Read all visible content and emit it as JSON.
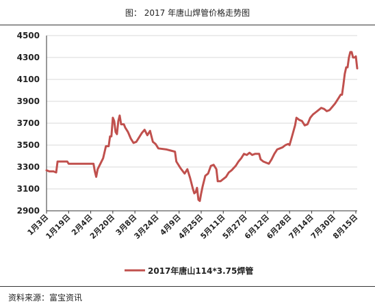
{
  "header": {
    "title": "图： 2017 年唐山焊管价格走势图"
  },
  "footer": {
    "source": "资料来源：富宝资讯"
  },
  "colors": {
    "series": "#c0504d",
    "grid": "#d9d9d9",
    "axis": "#333333"
  },
  "chart_data": {
    "type": "line",
    "title": "图： 2017 年唐山焊管价格走势图",
    "xlabel": "",
    "ylabel": "",
    "ylim": [
      2900,
      4500
    ],
    "yticks": [
      2900,
      3100,
      3300,
      3500,
      3700,
      3900,
      4100,
      4300,
      4500
    ],
    "xticks": [
      "1月3日",
      "1月19日",
      "2月4日",
      "2月20日",
      "3月8日",
      "3月24日",
      "4月9日",
      "4月25日",
      "5月11日",
      "5月27日",
      "6月12日",
      "6月28日",
      "7月14日",
      "7月30日",
      "8月15日"
    ],
    "grid": "horizontal",
    "legend_position": "bottom",
    "series": [
      {
        "name": "2017年唐山114*3.75焊管",
        "points": [
          [
            "1月3日",
            3270
          ],
          [
            "1月5日",
            3260
          ],
          [
            "1月8日",
            3260
          ],
          [
            "1月10日",
            3250
          ],
          [
            "1月11日",
            3350
          ],
          [
            "1月18日",
            3350
          ],
          [
            "1月19日",
            3330
          ],
          [
            "2月1日",
            3330
          ],
          [
            "2月6日",
            3330
          ],
          [
            "2月7日",
            3260
          ],
          [
            "2月8日",
            3210
          ],
          [
            "2月9日",
            3280
          ],
          [
            "2月11日",
            3330
          ],
          [
            "2月13日",
            3380
          ],
          [
            "2月15日",
            3490
          ],
          [
            "2月17日",
            3490
          ],
          [
            "2月18日",
            3580
          ],
          [
            "2月19日",
            3580
          ],
          [
            "2月20日",
            3750
          ],
          [
            "2月21日",
            3720
          ],
          [
            "2月22日",
            3620
          ],
          [
            "2月23日",
            3600
          ],
          [
            "2月24日",
            3720
          ],
          [
            "2月25日",
            3770
          ],
          [
            "2月26日",
            3690
          ],
          [
            "2月28日",
            3690
          ],
          [
            "3月1日",
            3660
          ],
          [
            "3月3日",
            3620
          ],
          [
            "3月5日",
            3560
          ],
          [
            "3月7日",
            3520
          ],
          [
            "3月9日",
            3530
          ],
          [
            "3月11日",
            3570
          ],
          [
            "3月13日",
            3610
          ],
          [
            "3月15日",
            3640
          ],
          [
            "3月17日",
            3590
          ],
          [
            "3月19日",
            3630
          ],
          [
            "3月21日",
            3530
          ],
          [
            "3月23日",
            3510
          ],
          [
            "3月25日",
            3470
          ],
          [
            "3月31日",
            3460
          ],
          [
            "4月3日",
            3450
          ],
          [
            "4月6日",
            3440
          ],
          [
            "4月7日",
            3350
          ],
          [
            "4月10日",
            3290
          ],
          [
            "4月13日",
            3240
          ],
          [
            "4月15日",
            3280
          ],
          [
            "4月17日",
            3200
          ],
          [
            "4月19日",
            3100
          ],
          [
            "4月20日",
            3060
          ],
          [
            "4月21日",
            3070
          ],
          [
            "4月22日",
            3110
          ],
          [
            "4月23日",
            3000
          ],
          [
            "4月24日",
            2990
          ],
          [
            "4月25日",
            3060
          ],
          [
            "4月26日",
            3120
          ],
          [
            "4月28日",
            3220
          ],
          [
            "4月30日",
            3240
          ],
          [
            "5月2日",
            3310
          ],
          [
            "5月4日",
            3320
          ],
          [
            "5月6日",
            3280
          ],
          [
            "5月7日",
            3170
          ],
          [
            "5月9日",
            3170
          ],
          [
            "5月11日",
            3190
          ],
          [
            "5月13日",
            3210
          ],
          [
            "5月15日",
            3250
          ],
          [
            "5月17日",
            3270
          ],
          [
            "5月20日",
            3310
          ],
          [
            "5月22日",
            3350
          ],
          [
            "5月24日",
            3380
          ],
          [
            "5月26日",
            3420
          ],
          [
            "5月28日",
            3410
          ],
          [
            "5月30日",
            3430
          ],
          [
            "6月1日",
            3410
          ],
          [
            "6月3日",
            3420
          ],
          [
            "6月6日",
            3420
          ],
          [
            "6月7日",
            3370
          ],
          [
            "6月9日",
            3350
          ],
          [
            "6月11日",
            3340
          ],
          [
            "6月13日",
            3330
          ],
          [
            "6月15日",
            3370
          ],
          [
            "6月17日",
            3420
          ],
          [
            "6月19日",
            3460
          ],
          [
            "6月21日",
            3470
          ],
          [
            "6月23日",
            3480
          ],
          [
            "6月25日",
            3500
          ],
          [
            "6月27日",
            3510
          ],
          [
            "6月28日",
            3500
          ],
          [
            "6月30日",
            3590
          ],
          [
            "7月2日",
            3680
          ],
          [
            "7月3日",
            3750
          ],
          [
            "7月5日",
            3730
          ],
          [
            "7月7日",
            3720
          ],
          [
            "7月9日",
            3680
          ],
          [
            "7月11日",
            3690
          ],
          [
            "7月13日",
            3750
          ],
          [
            "7月15日",
            3780
          ],
          [
            "7月17日",
            3800
          ],
          [
            "7月19日",
            3820
          ],
          [
            "7月21日",
            3840
          ],
          [
            "7月23日",
            3830
          ],
          [
            "7月25日",
            3810
          ],
          [
            "7月27日",
            3820
          ],
          [
            "7月29日",
            3850
          ],
          [
            "7月31日",
            3880
          ],
          [
            "8月2日",
            3920
          ],
          [
            "8月4日",
            3960
          ],
          [
            "8月5日",
            3960
          ],
          [
            "8月6日",
            4050
          ],
          [
            "8月7日",
            4150
          ],
          [
            "8月8日",
            4210
          ],
          [
            "8月9日",
            4210
          ],
          [
            "8月10日",
            4300
          ],
          [
            "8月11日",
            4350
          ],
          [
            "8月12日",
            4350
          ],
          [
            "8月13日",
            4300
          ],
          [
            "8月14日",
            4300
          ],
          [
            "8月15日",
            4310
          ],
          [
            "8月16日",
            4200
          ]
        ]
      }
    ]
  }
}
